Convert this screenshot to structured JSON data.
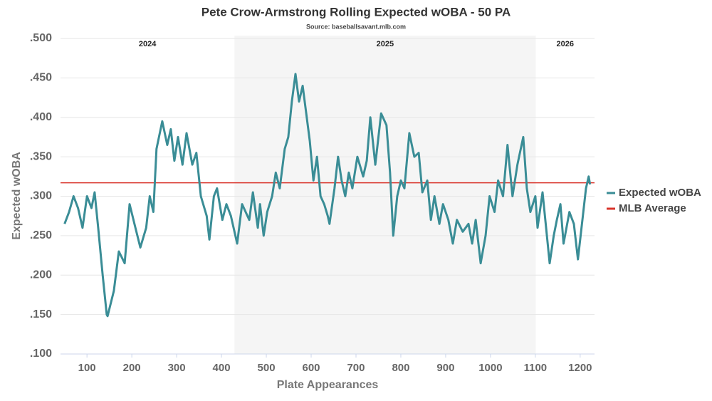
{
  "chart_data": {
    "type": "line",
    "title": "Pete Crow-Armstrong Rolling Expected wOBA - 50 PA",
    "subtitle": "Source: baseballsavant.mlb.com",
    "x_label": "Plate Appearances",
    "y_label": "Expected wOBA",
    "xlim": [
      41,
      1232
    ],
    "ylim": [
      0.1,
      0.5
    ],
    "xticks": [
      100,
      200,
      300,
      400,
      500,
      600,
      700,
      800,
      900,
      1000,
      1100,
      1200
    ],
    "yticks": [
      {
        "value": 0.1,
        "label": ".100"
      },
      {
        "value": 0.15,
        "label": ".150"
      },
      {
        "value": 0.2,
        "label": ".200"
      },
      {
        "value": 0.25,
        "label": ".250"
      },
      {
        "value": 0.3,
        "label": ".300"
      },
      {
        "value": 0.35,
        "label": ".350"
      },
      {
        "value": 0.4,
        "label": ".400"
      },
      {
        "value": 0.45,
        "label": ".450"
      },
      {
        "value": 0.5,
        "label": ".500"
      }
    ],
    "grid": true,
    "legend": "right",
    "seasons": [
      {
        "label": "2024",
        "start": 41,
        "end": 429,
        "shaded": false
      },
      {
        "label": "2025",
        "start": 429,
        "end": 1101,
        "shaded": true
      },
      {
        "label": "2026",
        "start": 1101,
        "end": 1232,
        "shaded": false
      }
    ],
    "reference": {
      "name": "MLB Average",
      "value": 0.317,
      "color": "#d9342b"
    },
    "x": [
      50,
      60,
      70,
      80,
      90,
      100,
      110,
      117,
      125,
      135,
      144,
      146,
      160,
      171,
      184,
      195,
      208,
      219,
      232,
      240,
      248,
      255,
      268,
      279,
      287,
      295,
      303,
      313,
      322,
      335,
      344,
      354,
      367,
      373,
      383,
      390,
      402,
      411,
      421,
      435,
      446,
      462,
      470,
      481,
      486,
      494,
      502,
      513,
      521,
      530,
      541,
      549,
      557,
      565,
      573,
      581,
      589,
      597,
      605,
      613,
      621,
      629,
      637,
      641,
      652,
      660,
      668,
      676,
      684,
      692,
      703,
      716,
      724,
      732,
      743,
      756,
      768,
      776,
      783,
      792,
      800,
      808,
      819,
      830,
      840,
      848,
      859,
      867,
      875,
      886,
      894,
      906,
      916,
      925,
      938,
      951,
      959,
      967,
      978,
      989,
      998,
      1009,
      1017,
      1028,
      1038,
      1049,
      1060,
      1073,
      1081,
      1089,
      1100,
      1105,
      1116,
      1124,
      1132,
      1141,
      1148,
      1156,
      1163,
      1176,
      1186,
      1195,
      1205,
      1213,
      1219,
      1222
    ],
    "series": [
      {
        "name": "Expected wOBA",
        "color": "#3a8d96",
        "values": [
          0.265,
          0.28,
          0.3,
          0.285,
          0.26,
          0.3,
          0.285,
          0.305,
          0.26,
          0.2,
          0.15,
          0.148,
          0.18,
          0.23,
          0.215,
          0.29,
          0.26,
          0.235,
          0.26,
          0.3,
          0.28,
          0.36,
          0.395,
          0.365,
          0.385,
          0.345,
          0.375,
          0.34,
          0.38,
          0.34,
          0.355,
          0.3,
          0.275,
          0.245,
          0.3,
          0.31,
          0.27,
          0.29,
          0.275,
          0.24,
          0.29,
          0.27,
          0.305,
          0.26,
          0.29,
          0.25,
          0.28,
          0.3,
          0.33,
          0.31,
          0.36,
          0.375,
          0.42,
          0.455,
          0.42,
          0.44,
          0.405,
          0.37,
          0.32,
          0.35,
          0.3,
          0.29,
          0.275,
          0.265,
          0.31,
          0.35,
          0.32,
          0.3,
          0.33,
          0.31,
          0.35,
          0.325,
          0.345,
          0.4,
          0.34,
          0.405,
          0.39,
          0.33,
          0.25,
          0.3,
          0.32,
          0.31,
          0.38,
          0.35,
          0.355,
          0.305,
          0.32,
          0.27,
          0.3,
          0.265,
          0.29,
          0.27,
          0.24,
          0.27,
          0.255,
          0.265,
          0.24,
          0.27,
          0.215,
          0.25,
          0.3,
          0.28,
          0.32,
          0.3,
          0.365,
          0.3,
          0.34,
          0.375,
          0.31,
          0.28,
          0.3,
          0.26,
          0.305,
          0.26,
          0.215,
          0.25,
          0.27,
          0.29,
          0.24,
          0.28,
          0.265,
          0.22,
          0.27,
          0.31,
          0.325,
          0.315
        ]
      }
    ]
  }
}
